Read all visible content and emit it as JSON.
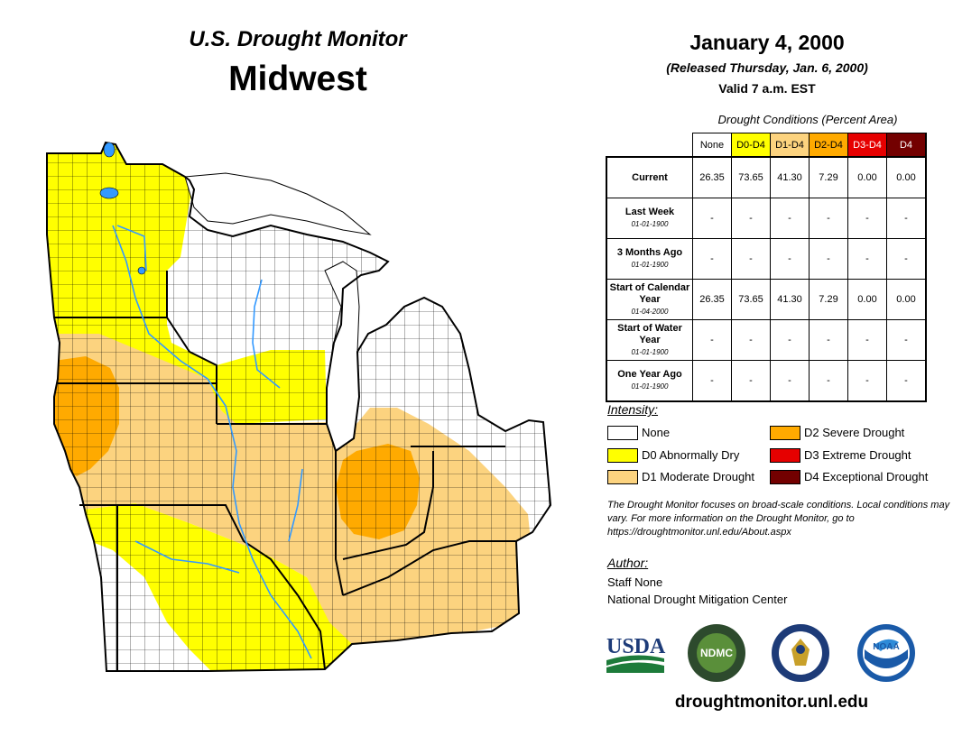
{
  "header": {
    "product": "U.S. Drought Monitor",
    "region": "Midwest",
    "date": "January 4, 2000",
    "released": "(Released Thursday, Jan. 6, 2000)",
    "valid": "Valid 7 a.m. EST"
  },
  "table": {
    "title": "Drought Conditions (Percent Area)",
    "columns": [
      {
        "label": "None",
        "color": "#ffffff",
        "text_color": "#000000"
      },
      {
        "label": "D0-D4",
        "color": "#ffff00",
        "text_color": "#000000"
      },
      {
        "label": "D1-D4",
        "color": "#fcd37f",
        "text_color": "#000000"
      },
      {
        "label": "D2-D4",
        "color": "#ffaa00",
        "text_color": "#000000"
      },
      {
        "label": "D3-D4",
        "color": "#e60000",
        "text_color": "#ffffff"
      },
      {
        "label": "D4",
        "color": "#730000",
        "text_color": "#ffffff"
      }
    ],
    "rows": [
      {
        "label": "Current",
        "date": "",
        "values": [
          "26.35",
          "73.65",
          "41.30",
          "7.29",
          "0.00",
          "0.00"
        ]
      },
      {
        "label": "Last Week",
        "date": "01-01-1900",
        "values": [
          "-",
          "-",
          "-",
          "-",
          "-",
          "-"
        ]
      },
      {
        "label": "3 Months Ago",
        "date": "01-01-1900",
        "values": [
          "-",
          "-",
          "-",
          "-",
          "-",
          "-"
        ]
      },
      {
        "label": "Start of Calendar Year",
        "date": "01-04-2000",
        "values": [
          "26.35",
          "73.65",
          "41.30",
          "7.29",
          "0.00",
          "0.00"
        ]
      },
      {
        "label": "Start of Water Year",
        "date": "01-01-1900",
        "values": [
          "-",
          "-",
          "-",
          "-",
          "-",
          "-"
        ]
      },
      {
        "label": "One Year Ago",
        "date": "01-01-1900",
        "values": [
          "-",
          "-",
          "-",
          "-",
          "-",
          "-"
        ]
      }
    ]
  },
  "legend": {
    "title": "Intensity:",
    "items": [
      {
        "label": "None",
        "color": "#ffffff"
      },
      {
        "label": "D0 Abnormally Dry",
        "color": "#ffff00"
      },
      {
        "label": "D1 Moderate Drought",
        "color": "#fcd37f"
      },
      {
        "label": "D2 Severe Drought",
        "color": "#ffaa00"
      },
      {
        "label": "D3 Extreme Drought",
        "color": "#e60000"
      },
      {
        "label": "D4 Exceptional Drought",
        "color": "#730000"
      }
    ]
  },
  "note": "The Drought Monitor focuses on broad-scale conditions. Local conditions may vary. For more information on the Drought Monitor, go to https://droughtmonitor.unl.edu/About.aspx",
  "author": {
    "title": "Author:",
    "name": "Staff None",
    "org": "National Drought Mitigation Center"
  },
  "logos": {
    "usda": "USDA",
    "ndmc": "NDMC",
    "noaa": "NOAA"
  },
  "website": "droughtmonitor.unl.edu",
  "map": {
    "water_color": "#3399ff",
    "d0_color": "#ffff00",
    "d1_color": "#fcd37f",
    "d2_color": "#ffaa00",
    "none_color": "#ffffff"
  }
}
